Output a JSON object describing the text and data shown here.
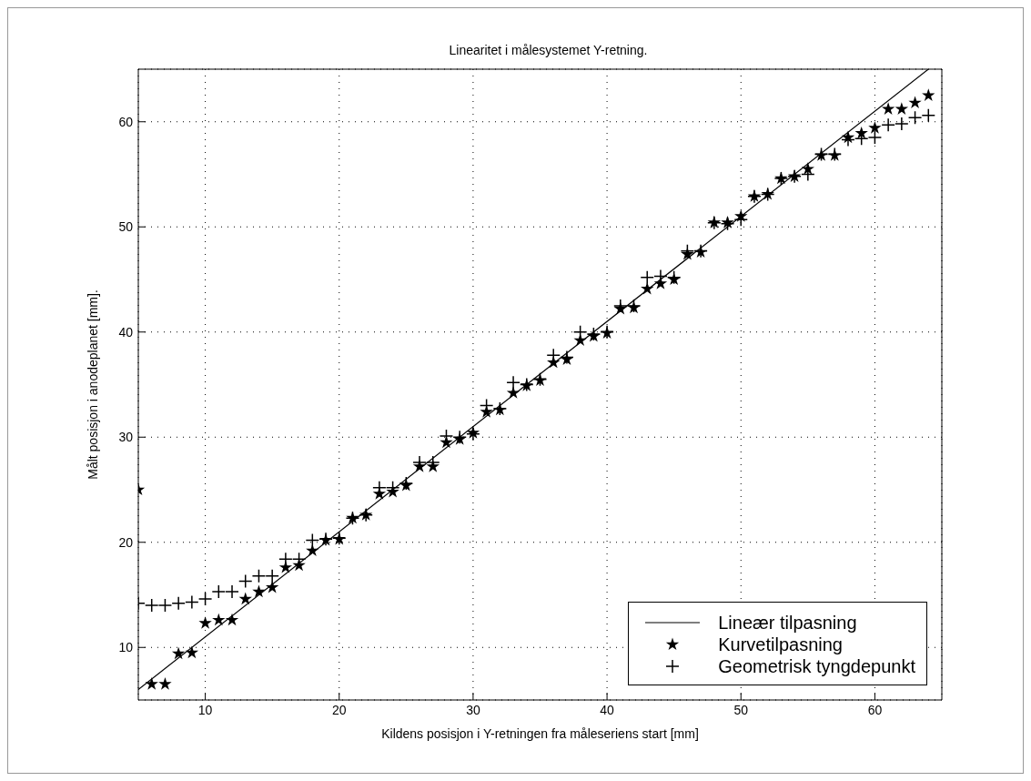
{
  "chart_data": {
    "type": "scatter",
    "title": "Linearitet i målesystemet Y-retning.",
    "xlabel": "Kildens posisjon i Y-retningen fra måleseriens start [mm]",
    "ylabel": "Målt posisjon i anodeplanet [mm].",
    "xlim": [
      5,
      65
    ],
    "ylim": [
      5,
      65
    ],
    "xticks": [
      10,
      20,
      30,
      40,
      50,
      60
    ],
    "yticks": [
      10,
      20,
      30,
      40,
      50,
      60
    ],
    "grid": true,
    "legend": "bottom right",
    "series": [
      {
        "name": "Lineær tilpasning",
        "type": "line",
        "color": "#000000",
        "marker": "none",
        "line_style": "solid",
        "x": [
          5,
          64
        ],
        "values": [
          6,
          65
        ]
      },
      {
        "name": "Kurvetilpasning",
        "color": "#000000",
        "marker": "star",
        "x": [
          5,
          6,
          7,
          8,
          9,
          10,
          11,
          12,
          13,
          14,
          15,
          16,
          17,
          18,
          19,
          20,
          21,
          22,
          23,
          24,
          25,
          26,
          27,
          28,
          29,
          30,
          31,
          32,
          33,
          34,
          35,
          36,
          37,
          38,
          39,
          40,
          41,
          42,
          43,
          44,
          45,
          46,
          47,
          48,
          49,
          50,
          51,
          52,
          53,
          54,
          55,
          56,
          57,
          58,
          59,
          60,
          61,
          62,
          63,
          64
        ],
        "values": [
          25,
          6.5,
          6.5,
          9.4,
          9.5,
          12.3,
          12.6,
          12.6,
          14.6,
          15.3,
          15.7,
          17.6,
          17.8,
          19.2,
          20.2,
          20.3,
          22.3,
          22.6,
          24.6,
          24.8,
          25.4,
          27.2,
          27.2,
          29.5,
          29.8,
          30.4,
          32.4,
          32.6,
          34.2,
          34.9,
          35.4,
          37.1,
          37.4,
          39.2,
          39.6,
          39.9,
          42.2,
          42.3,
          44.1,
          44.6,
          45,
          47.4,
          47.6,
          50.4,
          50.4,
          51,
          52.9,
          53.1,
          54.6,
          54.8,
          55.5,
          56.8,
          56.8,
          58.5,
          58.9,
          59.4,
          61.2,
          61.2,
          61.8,
          62.5
        ]
      },
      {
        "name": "Geometrisk tyngdepunkt",
        "color": "#000000",
        "marker": "cross",
        "x": [
          5,
          6,
          7,
          8,
          9,
          10,
          11,
          12,
          13,
          14,
          15,
          16,
          17,
          18,
          19,
          20,
          21,
          22,
          23,
          24,
          25,
          26,
          27,
          28,
          29,
          30,
          31,
          32,
          33,
          34,
          35,
          36,
          37,
          38,
          39,
          40,
          41,
          42,
          43,
          44,
          45,
          46,
          47,
          48,
          49,
          50,
          51,
          52,
          53,
          54,
          55,
          56,
          57,
          58,
          59,
          60,
          61,
          62,
          63,
          64
        ],
        "values": [
          14.2,
          14,
          14,
          14.2,
          14.3,
          14.6,
          15.3,
          15.3,
          16.3,
          16.8,
          16.8,
          18.4,
          18.4,
          20.2,
          20.3,
          20.4,
          22.3,
          22.6,
          25.2,
          25.2,
          25.6,
          27.6,
          27.6,
          30.1,
          30,
          30.3,
          33,
          32.7,
          35.2,
          35,
          35.5,
          37.8,
          37.6,
          40,
          39.8,
          40,
          42.5,
          42.5,
          45.2,
          45.3,
          45.2,
          47.7,
          47.7,
          50.4,
          50.3,
          50.7,
          52.9,
          53.1,
          54.6,
          54.8,
          55,
          56.9,
          56.9,
          58.3,
          58.4,
          58.5,
          59.7,
          59.8,
          60.4,
          60.6
        ]
      }
    ]
  }
}
